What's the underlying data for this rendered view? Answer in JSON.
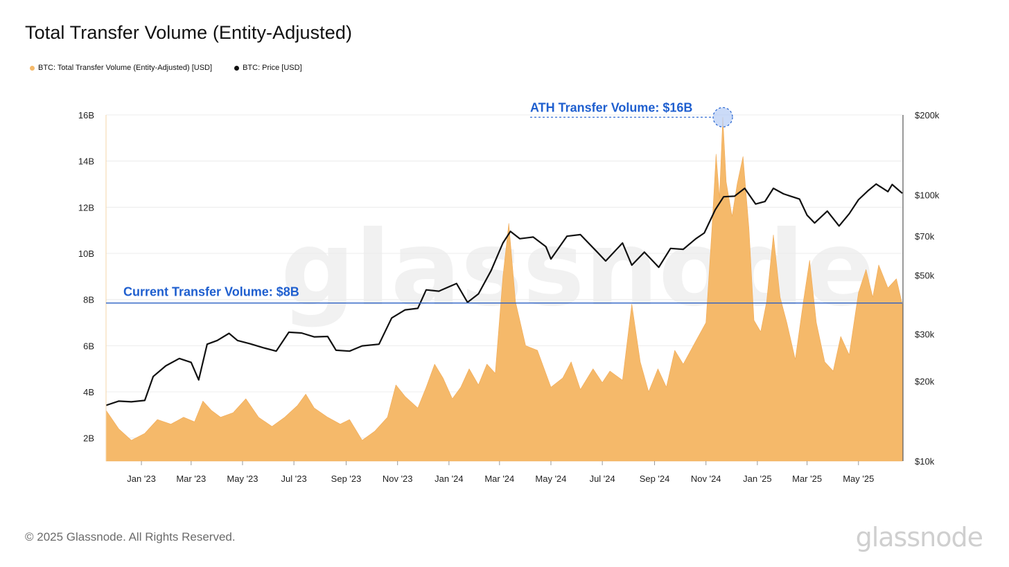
{
  "title": "Total Transfer Volume (Entity-Adjusted)",
  "legend": [
    {
      "label": "BTC: Total Transfer Volume (Entity-Adjusted) [USD]",
      "color": "#f5b96a"
    },
    {
      "label": "BTC: Price [USD]",
      "color": "#111111"
    }
  ],
  "footer": "© 2025 Glassnode. All Rights Reserved.",
  "brand": "glassnode",
  "chart_data": {
    "type": "area",
    "title": "Total Transfer Volume (Entity-Adjusted)",
    "x_range": [
      "2022-11-20",
      "2025-06-22"
    ],
    "x_ticks": [
      {
        "label": "Jan '23",
        "date": "2023-01-01"
      },
      {
        "label": "Mar '23",
        "date": "2023-03-01"
      },
      {
        "label": "May '23",
        "date": "2023-05-01"
      },
      {
        "label": "Jul '23",
        "date": "2023-07-01"
      },
      {
        "label": "Sep '23",
        "date": "2023-09-01"
      },
      {
        "label": "Nov '23",
        "date": "2023-11-01"
      },
      {
        "label": "Jan '24",
        "date": "2024-01-01"
      },
      {
        "label": "Mar '24",
        "date": "2024-03-01"
      },
      {
        "label": "May '24",
        "date": "2024-05-01"
      },
      {
        "label": "Jul '24",
        "date": "2024-07-01"
      },
      {
        "label": "Sep '24",
        "date": "2024-09-01"
      },
      {
        "label": "Nov '24",
        "date": "2024-11-01"
      },
      {
        "label": "Jan '25",
        "date": "2025-01-01"
      },
      {
        "label": "Mar '25",
        "date": "2025-03-01"
      },
      {
        "label": "May '25",
        "date": "2025-05-01"
      }
    ],
    "y_left": {
      "min": 1,
      "max": 16,
      "ticks": [
        {
          "label": "2B",
          "value": 2
        },
        {
          "label": "4B",
          "value": 4
        },
        {
          "label": "6B",
          "value": 6
        },
        {
          "label": "8B",
          "value": 8
        },
        {
          "label": "10B",
          "value": 10
        },
        {
          "label": "12B",
          "value": 12
        },
        {
          "label": "14B",
          "value": 14
        },
        {
          "label": "16B",
          "value": 16
        }
      ]
    },
    "y_right": {
      "scale": "log",
      "min": 10000,
      "max": 200000,
      "ticks": [
        {
          "label": "$10k",
          "value": 10000
        },
        {
          "label": "$20k",
          "value": 20000
        },
        {
          "label": "$30k",
          "value": 30000
        },
        {
          "label": "$50k",
          "value": 50000
        },
        {
          "label": "$70k",
          "value": 70000
        },
        {
          "label": "$100k",
          "value": 100000
        },
        {
          "label": "$200k",
          "value": 200000
        }
      ]
    },
    "series": [
      {
        "name": "BTC: Total Transfer Volume (Entity-Adjusted) [USD]",
        "unit": "B",
        "color": "#f5b96a",
        "points": [
          [
            "2022-11-20",
            3.2
          ],
          [
            "2022-12-05",
            2.4
          ],
          [
            "2022-12-20",
            1.9
          ],
          [
            "2023-01-05",
            2.2
          ],
          [
            "2023-01-20",
            2.8
          ],
          [
            "2023-02-05",
            2.6
          ],
          [
            "2023-02-20",
            2.9
          ],
          [
            "2023-03-05",
            2.7
          ],
          [
            "2023-03-15",
            3.6
          ],
          [
            "2023-03-25",
            3.2
          ],
          [
            "2023-04-05",
            2.9
          ],
          [
            "2023-04-20",
            3.1
          ],
          [
            "2023-05-05",
            3.7
          ],
          [
            "2023-05-20",
            2.9
          ],
          [
            "2023-06-05",
            2.5
          ],
          [
            "2023-06-20",
            2.9
          ],
          [
            "2023-07-05",
            3.4
          ],
          [
            "2023-07-15",
            3.9
          ],
          [
            "2023-07-25",
            3.3
          ],
          [
            "2023-08-10",
            2.9
          ],
          [
            "2023-08-25",
            2.6
          ],
          [
            "2023-09-05",
            2.8
          ],
          [
            "2023-09-20",
            1.9
          ],
          [
            "2023-10-05",
            2.3
          ],
          [
            "2023-10-20",
            2.9
          ],
          [
            "2023-10-30",
            4.3
          ],
          [
            "2023-11-10",
            3.8
          ],
          [
            "2023-11-25",
            3.3
          ],
          [
            "2023-12-05",
            4.2
          ],
          [
            "2023-12-15",
            5.2
          ],
          [
            "2023-12-25",
            4.6
          ],
          [
            "2024-01-05",
            3.7
          ],
          [
            "2024-01-15",
            4.2
          ],
          [
            "2024-01-25",
            5.0
          ],
          [
            "2024-02-05",
            4.3
          ],
          [
            "2024-02-15",
            5.2
          ],
          [
            "2024-02-25",
            4.8
          ],
          [
            "2024-03-05",
            9.0
          ],
          [
            "2024-03-12",
            11.3
          ],
          [
            "2024-03-20",
            7.9
          ],
          [
            "2024-04-01",
            6.0
          ],
          [
            "2024-04-15",
            5.8
          ],
          [
            "2024-05-01",
            4.2
          ],
          [
            "2024-05-15",
            4.6
          ],
          [
            "2024-05-25",
            5.3
          ],
          [
            "2024-06-05",
            4.1
          ],
          [
            "2024-06-20",
            5.0
          ],
          [
            "2024-07-01",
            4.4
          ],
          [
            "2024-07-10",
            4.9
          ],
          [
            "2024-07-25",
            4.5
          ],
          [
            "2024-08-05",
            7.8
          ],
          [
            "2024-08-15",
            5.3
          ],
          [
            "2024-08-25",
            4.0
          ],
          [
            "2024-09-05",
            5.0
          ],
          [
            "2024-09-15",
            4.2
          ],
          [
            "2024-09-25",
            5.8
          ],
          [
            "2024-10-05",
            5.2
          ],
          [
            "2024-10-20",
            6.2
          ],
          [
            "2024-11-01",
            7.0
          ],
          [
            "2024-11-08",
            11.0
          ],
          [
            "2024-11-13",
            14.3
          ],
          [
            "2024-11-17",
            12.4
          ],
          [
            "2024-11-21",
            15.9
          ],
          [
            "2024-11-25",
            13.1
          ],
          [
            "2024-12-02",
            11.6
          ],
          [
            "2024-12-08",
            13.0
          ],
          [
            "2024-12-15",
            14.2
          ],
          [
            "2024-12-22",
            11.1
          ],
          [
            "2024-12-28",
            7.1
          ],
          [
            "2025-01-05",
            6.6
          ],
          [
            "2025-01-12",
            7.9
          ],
          [
            "2025-01-20",
            10.8
          ],
          [
            "2025-01-28",
            8.1
          ],
          [
            "2025-02-05",
            7.0
          ],
          [
            "2025-02-15",
            5.4
          ],
          [
            "2025-02-25",
            8.0
          ],
          [
            "2025-03-04",
            9.7
          ],
          [
            "2025-03-12",
            7.0
          ],
          [
            "2025-03-22",
            5.3
          ],
          [
            "2025-04-01",
            4.9
          ],
          [
            "2025-04-10",
            6.4
          ],
          [
            "2025-04-20",
            5.6
          ],
          [
            "2025-05-01",
            8.3
          ],
          [
            "2025-05-10",
            9.3
          ],
          [
            "2025-05-18",
            8.1
          ],
          [
            "2025-05-25",
            9.5
          ],
          [
            "2025-06-05",
            8.5
          ],
          [
            "2025-06-15",
            8.9
          ],
          [
            "2025-06-22",
            7.8
          ]
        ]
      },
      {
        "name": "BTC: Price [USD]",
        "scale": "log",
        "color": "#111111",
        "points": [
          [
            "2022-11-20",
            16200
          ],
          [
            "2022-12-05",
            16800
          ],
          [
            "2022-12-20",
            16700
          ],
          [
            "2023-01-05",
            16900
          ],
          [
            "2023-01-15",
            20800
          ],
          [
            "2023-01-30",
            22800
          ],
          [
            "2023-02-15",
            24300
          ],
          [
            "2023-03-01",
            23500
          ],
          [
            "2023-03-10",
            20200
          ],
          [
            "2023-03-20",
            27500
          ],
          [
            "2023-04-01",
            28400
          ],
          [
            "2023-04-15",
            30200
          ],
          [
            "2023-04-25",
            28400
          ],
          [
            "2023-05-10",
            27600
          ],
          [
            "2023-05-25",
            26700
          ],
          [
            "2023-06-10",
            25900
          ],
          [
            "2023-06-25",
            30500
          ],
          [
            "2023-07-10",
            30300
          ],
          [
            "2023-07-25",
            29300
          ],
          [
            "2023-08-10",
            29400
          ],
          [
            "2023-08-20",
            26100
          ],
          [
            "2023-09-05",
            25900
          ],
          [
            "2023-09-20",
            27100
          ],
          [
            "2023-10-10",
            27500
          ],
          [
            "2023-10-25",
            34500
          ],
          [
            "2023-11-10",
            37000
          ],
          [
            "2023-11-25",
            37500
          ],
          [
            "2023-12-05",
            44000
          ],
          [
            "2023-12-20",
            43500
          ],
          [
            "2024-01-10",
            46500
          ],
          [
            "2024-01-23",
            39500
          ],
          [
            "2024-02-05",
            42500
          ],
          [
            "2024-02-20",
            52000
          ],
          [
            "2024-03-05",
            66000
          ],
          [
            "2024-03-14",
            73000
          ],
          [
            "2024-03-25",
            68500
          ],
          [
            "2024-04-10",
            69500
          ],
          [
            "2024-04-25",
            64000
          ],
          [
            "2024-05-01",
            57500
          ],
          [
            "2024-05-20",
            70000
          ],
          [
            "2024-06-05",
            71000
          ],
          [
            "2024-06-25",
            61000
          ],
          [
            "2024-07-05",
            56500
          ],
          [
            "2024-07-25",
            66000
          ],
          [
            "2024-08-05",
            54500
          ],
          [
            "2024-08-20",
            61000
          ],
          [
            "2024-09-06",
            53500
          ],
          [
            "2024-09-20",
            63000
          ],
          [
            "2024-10-05",
            62500
          ],
          [
            "2024-10-20",
            68500
          ],
          [
            "2024-10-30",
            72000
          ],
          [
            "2024-11-12",
            88000
          ],
          [
            "2024-11-22",
            98500
          ],
          [
            "2024-12-05",
            99000
          ],
          [
            "2024-12-17",
            106000
          ],
          [
            "2024-12-30",
            92500
          ],
          [
            "2025-01-10",
            94500
          ],
          [
            "2025-01-20",
            106000
          ],
          [
            "2025-02-01",
            101000
          ],
          [
            "2025-02-20",
            96500
          ],
          [
            "2025-03-01",
            84000
          ],
          [
            "2025-03-10",
            78500
          ],
          [
            "2025-03-25",
            87000
          ],
          [
            "2025-04-08",
            76500
          ],
          [
            "2025-04-20",
            85000
          ],
          [
            "2025-05-01",
            96000
          ],
          [
            "2025-05-12",
            103500
          ],
          [
            "2025-05-22",
            110000
          ],
          [
            "2025-06-05",
            103000
          ],
          [
            "2025-06-10",
            109500
          ],
          [
            "2025-06-22",
            101500
          ]
        ]
      }
    ],
    "annotations": [
      {
        "text": "ATH Transfer Volume: $16B",
        "date": "2024-11-21",
        "value": 15.9,
        "type": "marker"
      },
      {
        "text": "Current Transfer Volume: $8B",
        "value": 7.85,
        "type": "horizontal-line"
      }
    ]
  }
}
